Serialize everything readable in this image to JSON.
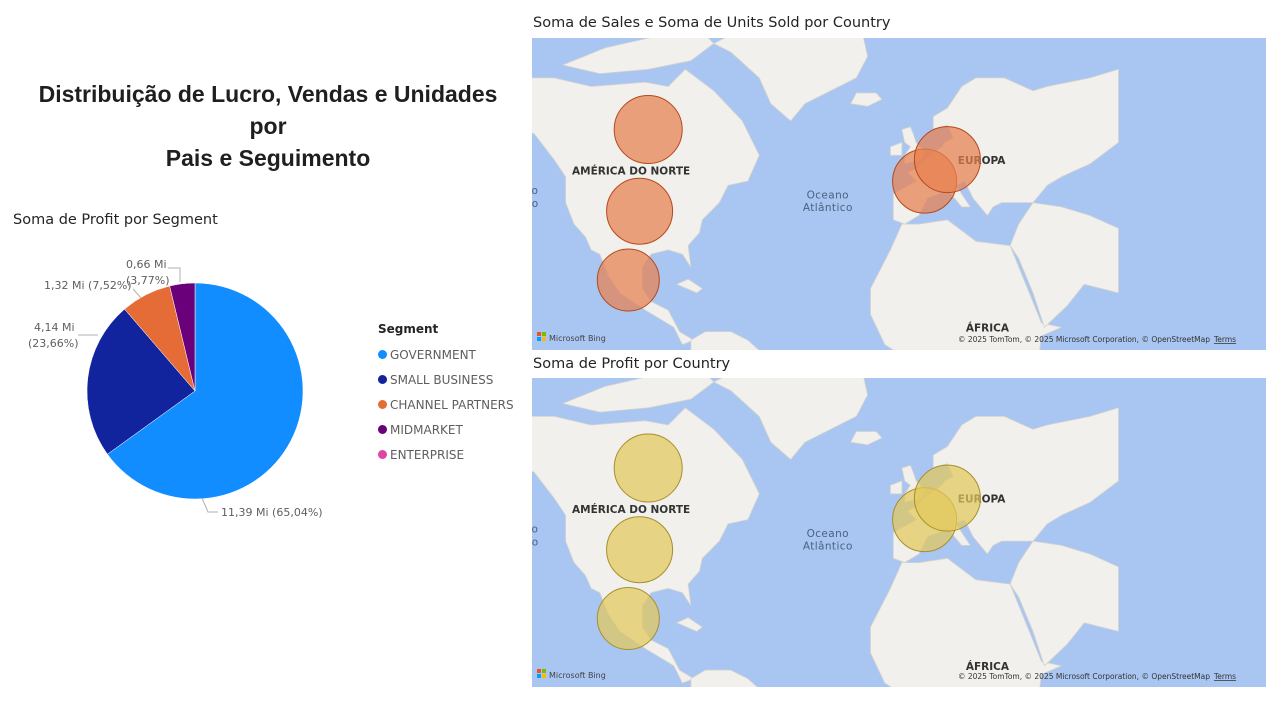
{
  "page_title_lines": [
    "Distribuição de Lucro, Vendas e Unidades por",
    "Pais e Seguimento"
  ],
  "colors": {
    "government": "#118DFF",
    "small_business": "#12239E",
    "channel_partners": "#E66C37",
    "midmarket": "#6B007B",
    "enterprise": "#E044A7",
    "ocean": "#a9c6f2",
    "land": "#f1f0ec",
    "sales_bubble": "#e8804f",
    "profit_bubble": "#e2c75a"
  },
  "chart_data": [
    {
      "type": "pie",
      "title": "Soma de Profit por Segment",
      "legend_title": "Segment",
      "legend_position": "right",
      "slices": [
        {
          "key": "government",
          "name": "GOVERNMENT",
          "value": 11.39,
          "pct": 65.04,
          "label": "11,39 Mi (65,04%)"
        },
        {
          "key": "small_business",
          "name": "SMALL BUSINESS",
          "value": 4.14,
          "pct": 23.66,
          "label_lines": [
            "4,14 Mi",
            "(23,66%)"
          ]
        },
        {
          "key": "channel_partners",
          "name": "CHANNEL PARTNERS",
          "value": 1.32,
          "pct": 7.52,
          "label": "1,32 Mi (7,52%)"
        },
        {
          "key": "midmarket",
          "name": "MIDMARKET",
          "value": 0.66,
          "pct": 3.77,
          "label_lines": [
            "0,66 Mi",
            "(3,77%)"
          ]
        },
        {
          "key": "enterprise",
          "name": "ENTERPRISE",
          "value": 0,
          "pct": 0
        }
      ]
    },
    {
      "type": "bubble-map",
      "title": "Soma de Sales e Soma de Units Sold por Country",
      "bubble_color": "sales_bubble",
      "points": [
        {
          "name": "Canada",
          "lon": -95,
          "lat": 58
        },
        {
          "name": "United States of America",
          "lon": -98,
          "lat": 39
        },
        {
          "name": "Mexico",
          "lon": -102,
          "lat": 23
        },
        {
          "name": "France",
          "lon": 2,
          "lat": 46
        },
        {
          "name": "Germany",
          "lon": 10,
          "lat": 51
        }
      ]
    },
    {
      "type": "bubble-map",
      "title": "Soma de Profit por Country",
      "bubble_color": "profit_bubble",
      "points": [
        {
          "name": "Canada",
          "lon": -95,
          "lat": 58
        },
        {
          "name": "United States of America",
          "lon": -98,
          "lat": 39
        },
        {
          "name": "Mexico",
          "lon": -102,
          "lat": 23
        },
        {
          "name": "France",
          "lon": 2,
          "lat": 46
        },
        {
          "name": "Germany",
          "lon": 10,
          "lat": 51
        }
      ]
    }
  ],
  "map_labels": {
    "north_america": "AMÉRICA DO NORTE",
    "europe": "EUROPA",
    "africa": "ÁFRICA",
    "pacific_line1": "Oceano",
    "pacific_line2": "Pacífico",
    "atlantic_line1": "Oceano",
    "atlantic_line2": "Atlântico",
    "bing_logo": "Microsoft Bing",
    "attribution": "© 2025 TomTom, © 2025 Microsoft Corporation, © OpenStreetMap",
    "terms": "Terms"
  }
}
